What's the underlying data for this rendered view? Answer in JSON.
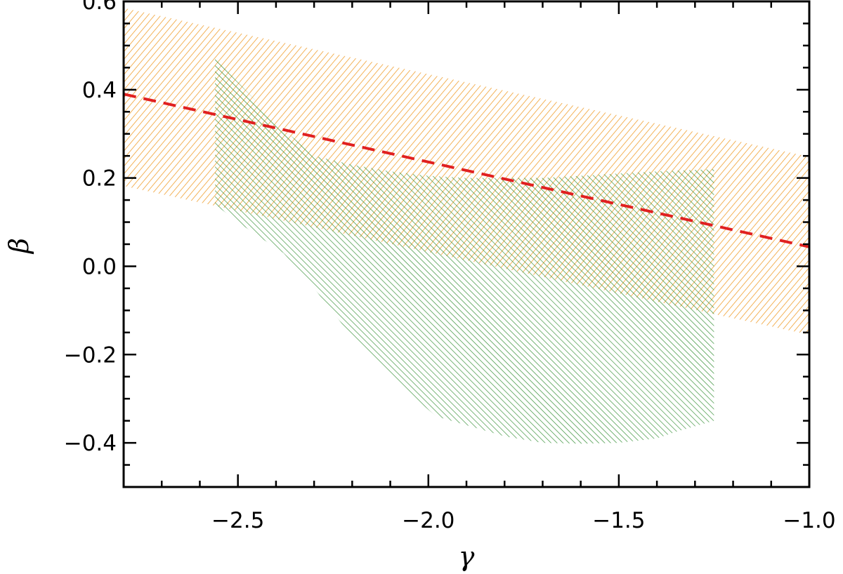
{
  "chart_data": {
    "type": "area",
    "xlabel": "γ",
    "ylabel": "β",
    "xlim": [
      -2.8,
      -1.0
    ],
    "ylim": [
      -0.5,
      0.6
    ],
    "x_ticks": [
      -2.5,
      -2.0,
      -1.5,
      -1.0
    ],
    "x_tick_labels": [
      "−2.5",
      "−2.0",
      "−1.5",
      "−1.0"
    ],
    "y_ticks": [
      0.6,
      0.4,
      0.2,
      0.0,
      -0.2,
      -0.4
    ],
    "y_tick_labels": [
      "0.6",
      "0.4",
      "0.2",
      "0.0",
      "−0.2",
      "−0.4"
    ],
    "x_minor_step": 0.1,
    "y_minor_step": 0.05,
    "grid": false,
    "legend": "none",
    "series": [
      {
        "kind": "band",
        "color": "#f0a030",
        "hatch": "diagonal",
        "upper": [
          [
            -2.8,
            0.585
          ],
          [
            -1.0,
            0.248
          ]
        ],
        "lower": [
          [
            -2.8,
            0.182
          ],
          [
            -1.0,
            -0.155
          ]
        ]
      },
      {
        "kind": "polygon",
        "color": "#2e8b2e",
        "hatch": "diagonal",
        "points": [
          [
            -2.56,
            0.47
          ],
          [
            -2.38,
            0.31
          ],
          [
            -2.3,
            0.25
          ],
          [
            -2.2,
            0.23
          ],
          [
            -2.1,
            0.215
          ],
          [
            -2.0,
            0.205
          ],
          [
            -1.9,
            0.2
          ],
          [
            -1.8,
            0.2
          ],
          [
            -1.7,
            0.2
          ],
          [
            -1.6,
            0.205
          ],
          [
            -1.5,
            0.21
          ],
          [
            -1.4,
            0.215
          ],
          [
            -1.25,
            0.22
          ],
          [
            -1.25,
            -0.35
          ],
          [
            -1.35,
            -0.375
          ],
          [
            -1.4,
            -0.39
          ],
          [
            -1.5,
            -0.4
          ],
          [
            -1.6,
            -0.402
          ],
          [
            -1.7,
            -0.4
          ],
          [
            -1.8,
            -0.385
          ],
          [
            -1.9,
            -0.36
          ],
          [
            -1.98,
            -0.34
          ],
          [
            -2.02,
            -0.31
          ],
          [
            -2.1,
            -0.245
          ],
          [
            -2.2,
            -0.16
          ],
          [
            -2.3,
            -0.05
          ],
          [
            -2.38,
            0.03
          ],
          [
            -2.45,
            0.07
          ],
          [
            -2.5,
            0.1
          ],
          [
            -2.56,
            0.14
          ]
        ]
      },
      {
        "kind": "line",
        "color": "#e02020",
        "style": "dashed",
        "points": [
          [
            -2.8,
            0.39
          ],
          [
            -1.0,
            0.044
          ]
        ]
      }
    ]
  }
}
